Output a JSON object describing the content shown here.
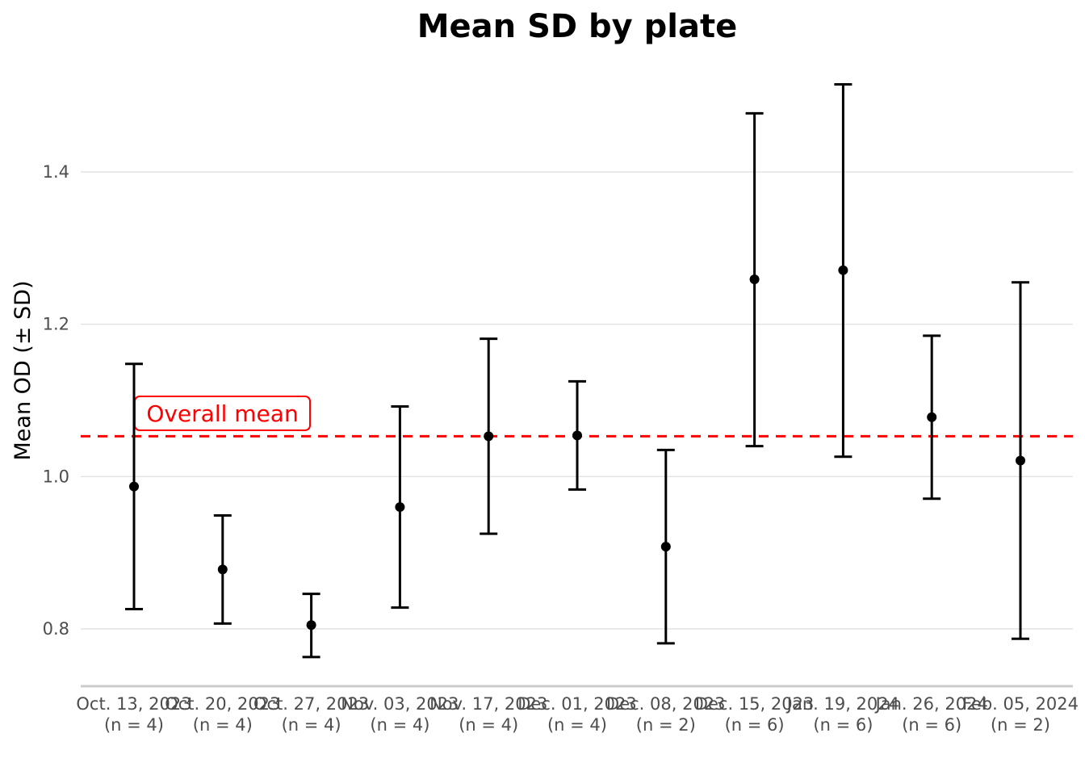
{
  "chart_data": {
    "type": "scatter",
    "title": "Mean SD by plate",
    "xlabel": "",
    "ylabel": "Mean OD (± SD)",
    "ylim": [
      0.725,
      1.55
    ],
    "yticks": [
      0.8,
      1.0,
      1.2,
      1.4
    ],
    "ytick_labels": [
      "0.8",
      "1.0",
      "1.2",
      "1.4"
    ],
    "grid": true,
    "categories": [
      "Oct. 13, 2023\n(n = 4)",
      "Oct. 20, 2023\n(n = 4)",
      "Oct. 27, 2023\n(n = 4)",
      "Nov. 03, 2023\n(n = 4)",
      "Nov. 17, 2023\n(n = 4)",
      "Dec. 01, 2023\n(n = 4)",
      "Dec. 08, 2023\n(n = 2)",
      "Dec. 15, 2023\n(n = 6)",
      "Jan. 19, 2024\n(n = 6)",
      "Jan. 26, 2024\n(n = 6)",
      "Feb. 05, 2024\n(n = 2)"
    ],
    "series": [
      {
        "mean": [
          0.987,
          0.878,
          0.805,
          0.96,
          1.053,
          1.054,
          0.908,
          1.259,
          1.271,
          1.078,
          1.021
        ],
        "lower": [
          0.826,
          0.807,
          0.763,
          0.828,
          0.925,
          0.983,
          0.781,
          1.04,
          1.026,
          0.971,
          0.787
        ],
        "upper": [
          1.148,
          0.949,
          0.846,
          1.092,
          1.181,
          1.125,
          1.035,
          1.477,
          1.515,
          1.185,
          1.255
        ]
      }
    ],
    "reference_line": {
      "value": 1.053,
      "label": "Overall mean",
      "color": "#ff0000",
      "style": "dashed"
    },
    "colors": {
      "points": "#000000",
      "grid": "#dedede",
      "tick_text": "#4d4d4d",
      "reference": "#ff0000"
    }
  }
}
